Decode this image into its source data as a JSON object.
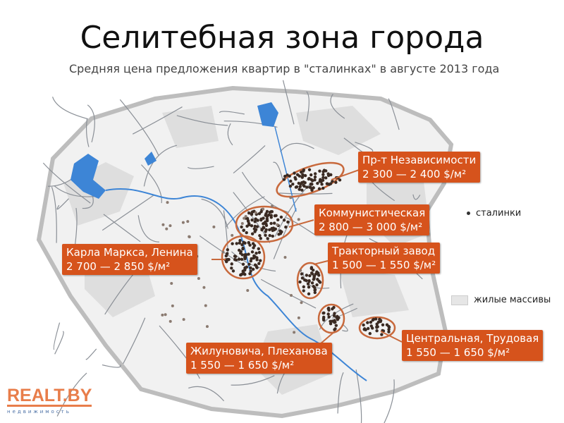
{
  "slide": {
    "title": "Селитебная зона города",
    "subtitle": "Средняя цена предложения квартир в \"сталинках\" в августе 2013 года"
  },
  "map": {
    "label_color": "#d6531c",
    "water_color": "#3d85d6",
    "districts": [
      {
        "name": "Пр-т Независимости",
        "price": "2 300 — 2 400 $/м²"
      },
      {
        "name": "Коммунистическая",
        "price": "2 800 — 3 000 $/м²"
      },
      {
        "name": "Карла Маркса, Ленина",
        "price": "2 700 — 2 850 $/м²"
      },
      {
        "name": "Тракторный завод",
        "price": "1 500 — 1 550 $/м²"
      },
      {
        "name": "Жилуновича, Плеханова",
        "price": "1 550 — 1 650 $/м²"
      },
      {
        "name": "Центральная, Трудовая",
        "price": "1 550 — 1 650 $/м²"
      }
    ],
    "legend": {
      "stalinki": "сталинки",
      "residential": "жилые массивы"
    }
  },
  "logo": {
    "main": "REALT.BY",
    "sub": "недвижимость"
  }
}
